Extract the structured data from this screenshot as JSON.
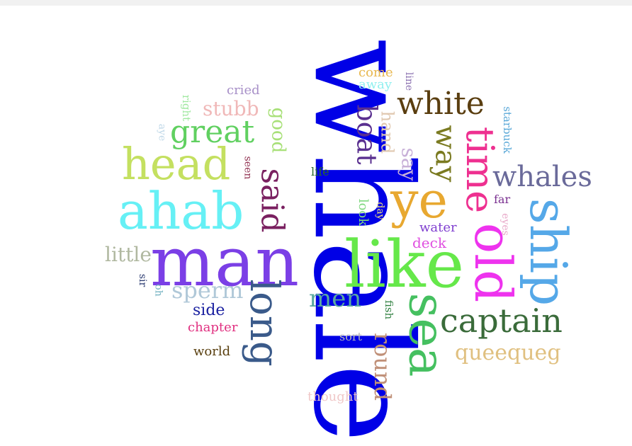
{
  "words": [
    {
      "text": "whale",
      "color": "#0000e6",
      "vertical": true
    },
    {
      "text": "man",
      "color": "#7b3fe6",
      "vertical": false
    },
    {
      "text": "like",
      "color": "#66e84a",
      "vertical": false
    },
    {
      "text": "ahab",
      "color": "#66f0f5",
      "vertical": false
    },
    {
      "text": "ship",
      "color": "#55a8e8",
      "vertical": true
    },
    {
      "text": "old",
      "color": "#ee33ee",
      "vertical": true
    },
    {
      "text": "sea",
      "color": "#45c060",
      "vertical": true
    },
    {
      "text": "ye",
      "color": "#e8a830",
      "vertical": false
    },
    {
      "text": "head",
      "color": "#c4e060",
      "vertical": false
    },
    {
      "text": "time",
      "color": "#ee3090",
      "vertical": true
    },
    {
      "text": "long",
      "color": "#3a5a8a",
      "vertical": true
    },
    {
      "text": "captain",
      "color": "#3a6b3a",
      "vertical": false
    },
    {
      "text": "white",
      "color": "#5a3e10",
      "vertical": false
    },
    {
      "text": "whales",
      "color": "#6a6a9a",
      "vertical": false
    },
    {
      "text": "great",
      "color": "#60d060",
      "vertical": false
    },
    {
      "text": "said",
      "color": "#7a2060",
      "vertical": true
    },
    {
      "text": "boat",
      "color": "#5a3090",
      "vertical": true
    },
    {
      "text": "way",
      "color": "#7a7a20",
      "vertical": true
    },
    {
      "text": "men",
      "color": "#5aa8a0",
      "vertical": false
    },
    {
      "text": "round",
      "color": "#c09078",
      "vertical": true
    },
    {
      "text": "queequeg",
      "color": "#e0c080",
      "vertical": false
    },
    {
      "text": "sperm",
      "color": "#b0c8d8",
      "vertical": false
    },
    {
      "text": "little",
      "color": "#b0b8a0",
      "vertical": false
    },
    {
      "text": "stubb",
      "color": "#f0b8b8",
      "vertical": false
    },
    {
      "text": "say",
      "color": "#c8b0d8",
      "vertical": true
    },
    {
      "text": "good",
      "color": "#a8e078",
      "vertical": true
    },
    {
      "text": "hand",
      "color": "#e0c8b0",
      "vertical": true
    },
    {
      "text": "side",
      "color": "#1a20a0",
      "vertical": false
    },
    {
      "text": "chapter",
      "color": "#e03080",
      "vertical": false
    },
    {
      "text": "world",
      "color": "#5a4010",
      "vertical": false
    },
    {
      "text": "come",
      "color": "#e8b850",
      "vertical": false
    },
    {
      "text": "away",
      "color": "#90f0f0",
      "vertical": false
    },
    {
      "text": "cried",
      "color": "#a890c8",
      "vertical": false
    },
    {
      "text": "deck",
      "color": "#e050e0",
      "vertical": false
    },
    {
      "text": "water",
      "color": "#8040d0",
      "vertical": false
    },
    {
      "text": "look",
      "color": "#80d880",
      "vertical": true
    },
    {
      "text": "life",
      "color": "#2a6a2a",
      "vertical": false
    },
    {
      "text": "thought",
      "color": "#f0c8c8",
      "vertical": false
    },
    {
      "text": "sort",
      "color": "#b8b8b8",
      "vertical": false
    },
    {
      "text": "far",
      "color": "#7a3090",
      "vertical": false
    },
    {
      "text": "starbuck",
      "color": "#5aa8d8",
      "vertical": true
    },
    {
      "text": "right",
      "color": "#a0e8a0",
      "vertical": true
    },
    {
      "text": "line",
      "color": "#8a70b0",
      "vertical": true
    },
    {
      "text": "seen",
      "color": "#903050",
      "vertical": true
    },
    {
      "text": "fish",
      "color": "#308040",
      "vertical": true
    },
    {
      "text": "day",
      "color": "#f0e080",
      "vertical": true
    },
    {
      "text": "eyes",
      "color": "#e8a8c8",
      "vertical": true
    },
    {
      "text": "aye",
      "color": "#c0d8e8",
      "vertical": true
    },
    {
      "text": "sir",
      "color": "#2a3a70",
      "vertical": true
    },
    {
      "text": "oh",
      "color": "#70b0c0",
      "vertical": true
    }
  ]
}
